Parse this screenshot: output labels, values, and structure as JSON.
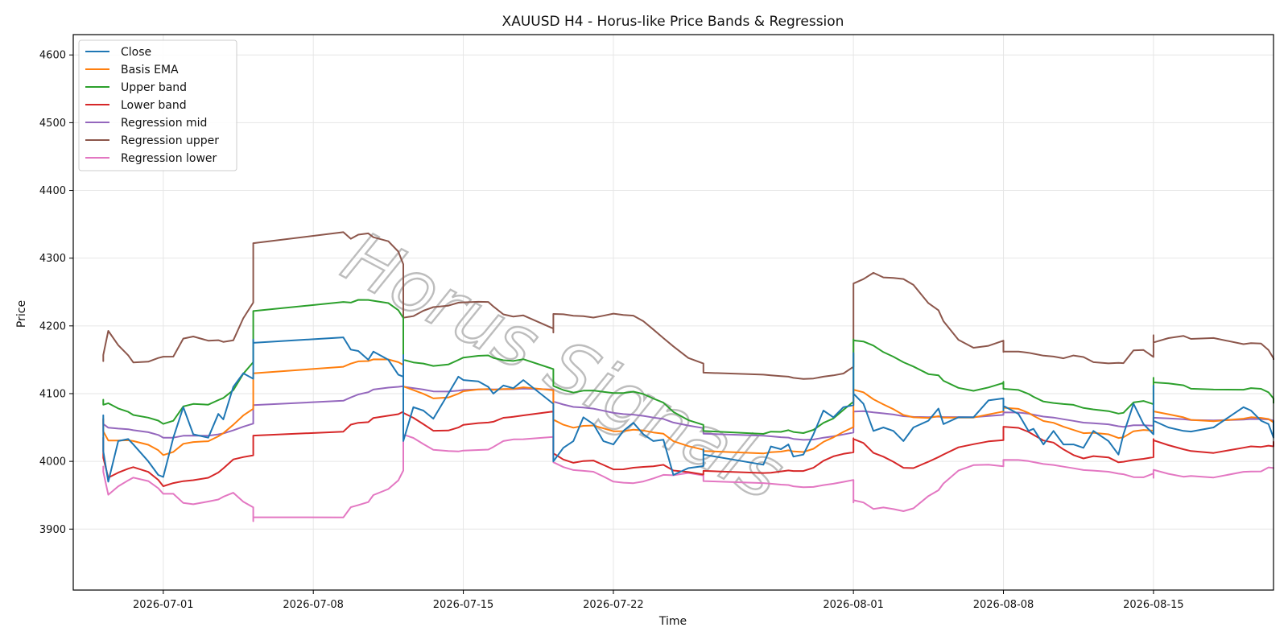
{
  "chart_data": {
    "type": "line",
    "title": "XAUUSD H4 - Horus-like Price Bands & Regression",
    "xlabel": "Time",
    "ylabel": "Price",
    "watermark": "Horus Signals",
    "x_tick_labels": [
      "2026-07-01",
      "2026-07-08",
      "2026-07-15",
      "2026-07-22",
      "2026-08-01",
      "2026-08-08",
      "2026-08-15"
    ],
    "y_ticks": [
      3900,
      4000,
      4100,
      4200,
      4300,
      4400,
      4500,
      4600
    ],
    "xlim": [
      "2026-06-26",
      "2026-08-21"
    ],
    "ylim": [
      3810,
      4630
    ],
    "grid": true,
    "legend_position": "top-left",
    "series": [
      {
        "name": "Close",
        "color": "#1f77b4",
        "points": [
          [
            "2026-06-27",
            4062
          ],
          [
            "2026-06-27T12",
            4068
          ],
          [
            "2026-06-28",
            4040
          ],
          [
            "2026-06-28T12",
            4015
          ],
          [
            "2026-06-29",
            4015
          ],
          [
            "2026-06-29T04",
            3970
          ],
          [
            "2026-06-29T12",
            4030
          ],
          [
            "2026-06-29T20",
            4033
          ],
          [
            "2026-06-30",
            4025
          ],
          [
            "2026-06-30T12",
            4000
          ],
          [
            "2026-06-30T20",
            3980
          ],
          [
            "2026-07-01",
            3977
          ],
          [
            "2026-07-01T08",
            4035
          ],
          [
            "2026-07-01T16",
            4080
          ],
          [
            "2026-07-02",
            4040
          ],
          [
            "2026-07-02T12",
            4035
          ],
          [
            "2026-07-02T20",
            4070
          ],
          [
            "2026-07-03",
            4062
          ],
          [
            "2026-07-03T08",
            4110
          ],
          [
            "2026-07-03T16",
            4130
          ],
          [
            "2026-07-04",
            4122
          ],
          [
            "2026-07-04T12",
            4170
          ],
          [
            "2026-07-05",
            4180
          ],
          [
            "2026-07-05T12",
            4165
          ],
          [
            "2026-07-06",
            4175
          ],
          [
            "2026-07-09",
            4183
          ],
          [
            "2026-07-09T06",
            4165
          ],
          [
            "2026-07-09T12",
            4163
          ],
          [
            "2026-07-09T20",
            4150
          ],
          [
            "2026-07-10",
            4162
          ],
          [
            "2026-07-10T12",
            4150
          ],
          [
            "2026-07-10T20",
            4128
          ],
          [
            "2026-07-11",
            4125
          ],
          [
            "2026-07-11T06",
            4157
          ],
          [
            "2026-07-11T14",
            4140
          ],
          [
            "2026-07-11T20",
            4120
          ],
          [
            "2026-07-12",
            4100
          ],
          [
            "2026-07-12T12",
            4122
          ],
          [
            "2026-07-12T20",
            4120
          ],
          [
            "2026-07-13",
            4030
          ],
          [
            "2026-07-13T08",
            4080
          ],
          [
            "2026-07-13T16",
            4075
          ],
          [
            "2026-07-14",
            4063
          ],
          [
            "2026-07-14T12",
            4100
          ],
          [
            "2026-07-14T20",
            4125
          ],
          [
            "2026-07-15",
            4120
          ],
          [
            "2026-07-15T12",
            4118
          ],
          [
            "2026-07-15T20",
            4110
          ],
          [
            "2026-07-16",
            4100
          ],
          [
            "2026-07-16T08",
            4112
          ],
          [
            "2026-07-16T16",
            4108
          ],
          [
            "2026-07-17",
            4120
          ],
          [
            "2026-07-19",
            4085
          ],
          [
            "2026-07-19T06",
            4062
          ],
          [
            "2026-07-19T14",
            4057
          ],
          [
            "2026-07-19T20",
            4010
          ],
          [
            "2026-07-20",
            4000
          ],
          [
            "2026-07-20T08",
            4020
          ],
          [
            "2026-07-20T16",
            4030
          ],
          [
            "2026-07-21",
            4065
          ],
          [
            "2026-07-21T08",
            4055
          ],
          [
            "2026-07-21T16",
            4030
          ],
          [
            "2026-07-22",
            4025
          ],
          [
            "2026-07-22T08",
            4045
          ],
          [
            "2026-07-22T16",
            4057
          ],
          [
            "2026-07-23",
            4040
          ],
          [
            "2026-07-23T08",
            4030
          ],
          [
            "2026-07-23T16",
            4032
          ],
          [
            "2026-07-24",
            3980
          ],
          [
            "2026-07-24T12",
            3990
          ],
          [
            "2026-07-25",
            3993
          ],
          [
            "2026-07-25T06",
            4018
          ],
          [
            "2026-07-25T14",
            4013
          ],
          [
            "2026-07-25T20",
            4017
          ],
          [
            "2026-07-26",
            4010
          ],
          [
            "2026-07-29",
            3995
          ],
          [
            "2026-07-29T06",
            4022
          ],
          [
            "2026-07-29T14",
            4018
          ],
          [
            "2026-07-29T20",
            4025
          ],
          [
            "2026-07-30",
            4007
          ],
          [
            "2026-07-30T08",
            4010
          ],
          [
            "2026-07-30T16",
            4040
          ],
          [
            "2026-07-31",
            4075
          ],
          [
            "2026-07-31T08",
            4065
          ],
          [
            "2026-07-31T16",
            4080
          ],
          [
            "2026-08-01",
            4083
          ],
          [
            "2026-08-01T06",
            4130
          ],
          [
            "2026-08-01T12",
            4110
          ],
          [
            "2026-08-01T20",
            4128
          ],
          [
            "2026-08-02",
            4160
          ],
          [
            "2026-08-02T12",
            4130
          ],
          [
            "2026-08-02T20",
            4125
          ],
          [
            "2026-08-03",
            4100
          ],
          [
            "2026-08-03T08",
            4085
          ],
          [
            "2026-08-03T16",
            4045
          ],
          [
            "2026-08-04",
            4050
          ],
          [
            "2026-08-04T08",
            4045
          ],
          [
            "2026-08-04T16",
            4030
          ],
          [
            "2026-08-05",
            4050
          ],
          [
            "2026-08-05T12",
            4060
          ],
          [
            "2026-08-05T20",
            4078
          ],
          [
            "2026-08-06",
            4055
          ],
          [
            "2026-08-06T12",
            4065
          ],
          [
            "2026-08-07",
            4065
          ],
          [
            "2026-08-07T12",
            4090
          ],
          [
            "2026-08-09",
            4093
          ],
          [
            "2026-08-09T06",
            4088
          ],
          [
            "2026-08-09T12",
            4093
          ],
          [
            "2026-08-09T20",
            4075
          ],
          [
            "2026-08-10",
            4082
          ],
          [
            "2026-08-10T12",
            4070
          ],
          [
            "2026-08-10T20",
            4045
          ],
          [
            "2026-08-11",
            4048
          ],
          [
            "2026-08-11T08",
            4025
          ],
          [
            "2026-08-11T16",
            4045
          ],
          [
            "2026-08-12",
            4025
          ],
          [
            "2026-08-12T08",
            4025
          ],
          [
            "2026-08-12T16",
            4020
          ],
          [
            "2026-08-13",
            4045
          ],
          [
            "2026-08-13T12",
            4030
          ],
          [
            "2026-08-13T20",
            4010
          ],
          [
            "2026-08-14",
            4040
          ],
          [
            "2026-08-14T08",
            4085
          ],
          [
            "2026-08-14T16",
            4055
          ],
          [
            "2026-08-15",
            4040
          ],
          [
            "2026-08-15T08",
            4080
          ],
          [
            "2026-08-15T16",
            4108
          ],
          [
            "2026-08-16",
            4112
          ],
          [
            "2026-08-16T08",
            4100
          ],
          [
            "2026-08-16T16",
            4080
          ],
          [
            "2026-08-17",
            4060
          ],
          [
            "2026-08-17T12",
            4050
          ],
          [
            "2026-08-18",
            4045
          ],
          [
            "2026-08-18T06",
            4044
          ],
          [
            "2026-08-19",
            4050
          ],
          [
            "2026-08-20",
            4080
          ],
          [
            "2026-08-20T06",
            4075
          ],
          [
            "2026-08-20T14",
            4060
          ],
          [
            "2026-08-20T20",
            4055
          ],
          [
            "2026-08-21",
            4035
          ],
          [
            "2026-08-21T08",
            4055
          ],
          [
            "2026-08-21T16",
            4060
          ]
        ]
      },
      {
        "name": "Basis EMA",
        "color": "#ff7f0e",
        "points": []
      },
      {
        "name": "Upper band",
        "color": "#2ca02c",
        "points": []
      },
      {
        "name": "Lower band",
        "color": "#d62728",
        "points": []
      },
      {
        "name": "Regression mid",
        "color": "#9467bd",
        "points": []
      },
      {
        "name": "Regression upper",
        "color": "#8c564b",
        "points": []
      },
      {
        "name": "Regression lower",
        "color": "#e377c2",
        "points": []
      }
    ]
  }
}
